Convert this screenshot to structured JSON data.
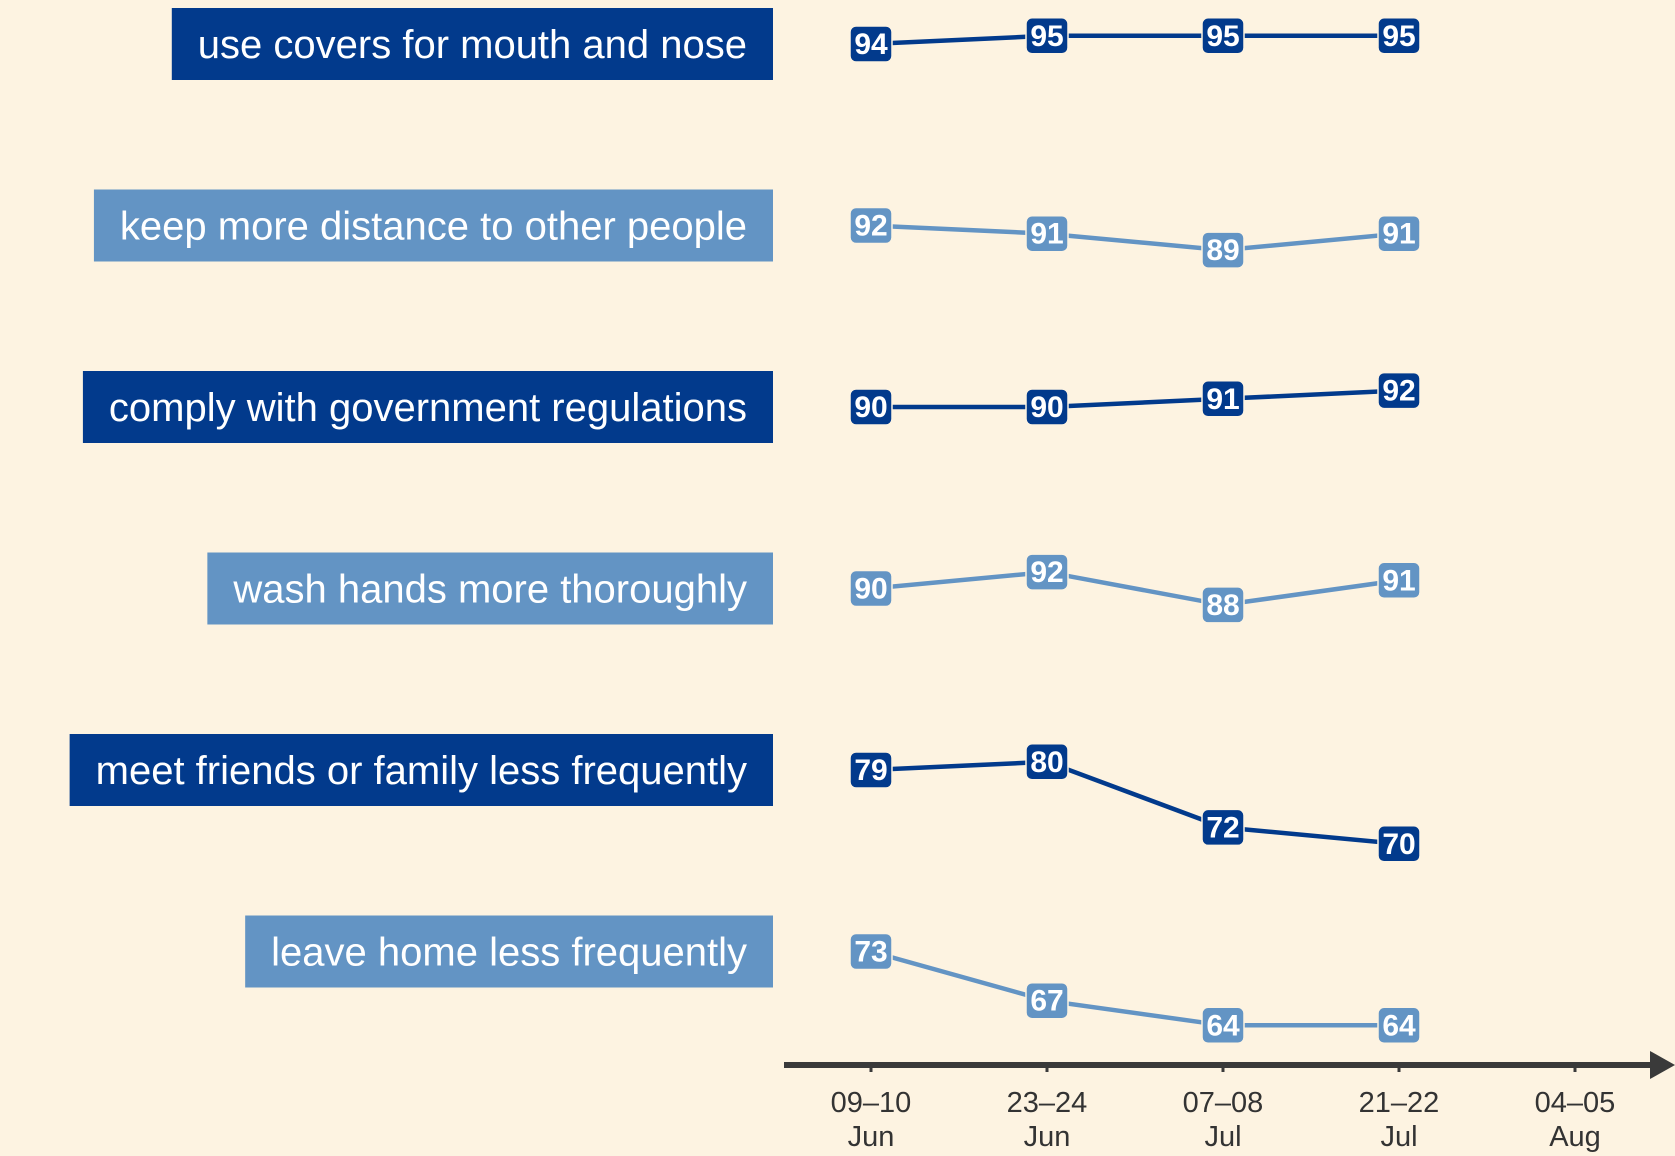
{
  "chart_data": {
    "type": "line",
    "categories": [
      "09–10 Jun",
      "23–24 Jun",
      "07–08 Jul",
      "21–22 Jul",
      "04–05 Aug"
    ],
    "series": [
      {
        "name": "use covers for mouth and nose",
        "color": "#023a8c",
        "values": [
          94,
          95,
          95,
          95,
          null
        ]
      },
      {
        "name": "keep more distance to other people",
        "color": "#6394c4",
        "values": [
          92,
          91,
          89,
          91,
          null
        ]
      },
      {
        "name": "comply with government regulations",
        "color": "#023a8c",
        "values": [
          90,
          90,
          91,
          92,
          null
        ]
      },
      {
        "name": "wash hands more thoroughly",
        "color": "#6394c4",
        "values": [
          90,
          92,
          88,
          91,
          null
        ]
      },
      {
        "name": "meet friends or family less frequently",
        "color": "#023a8c",
        "values": [
          79,
          80,
          72,
          70,
          null
        ]
      },
      {
        "name": "leave home less frequently",
        "color": "#6394c4",
        "values": [
          73,
          67,
          64,
          64,
          null
        ]
      }
    ]
  }
}
